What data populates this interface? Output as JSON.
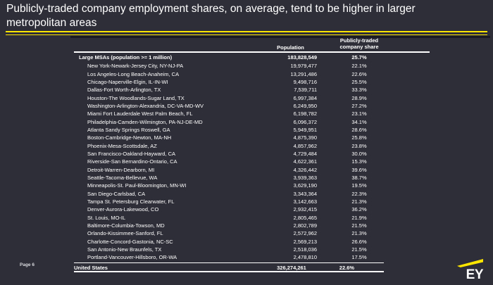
{
  "colors": {
    "bg": "#2e2e38",
    "accent": "#ffe600",
    "text": "#ffffff"
  },
  "slide": {
    "title": "Publicly-traded company employment shares, on average, tend to be higher in larger metropolitan areas",
    "page_label": "Page 6",
    "logo_text": "EY"
  },
  "table": {
    "headers": {
      "label": "",
      "population": "Population",
      "share": "Publicly-traded company share"
    },
    "rows": [
      {
        "type": "summary",
        "label": "Large MSAs (population >= 1 million)",
        "population": "183,828,549",
        "share": "25.7%"
      },
      {
        "type": "metro",
        "label": "New York-Newark-Jersey City, NY-NJ-PA",
        "population": "19,979,477",
        "share": "22.1%"
      },
      {
        "type": "metro",
        "label": "Los Angeles-Long Beach-Anaheim, CA",
        "population": "13,291,486",
        "share": "22.6%"
      },
      {
        "type": "metro",
        "label": "Chicago-Naperville-Elgin, IL-IN-WI",
        "population": "9,498,716",
        "share": "25.5%"
      },
      {
        "type": "metro",
        "label": "Dallas-Fort Worth-Arlington, TX",
        "population": "7,539,711",
        "share": "33.3%"
      },
      {
        "type": "metro",
        "label": "Houston-The Woodlands-Sugar Land, TX",
        "population": "6,997,384",
        "share": "28.9%"
      },
      {
        "type": "metro",
        "label": "Washington-Arlington-Alexandria, DC-VA-MD-WV",
        "population": "6,249,950",
        "share": "27.2%"
      },
      {
        "type": "metro",
        "label": "Miami Fort Lauderdale West Palm Beach, FL",
        "population": "6,198,782",
        "share": "23.1%"
      },
      {
        "type": "metro",
        "label": "Philadelphia-Camden-Wilmington, PA-NJ-DE-MD",
        "population": "6,096,372",
        "share": "34.1%"
      },
      {
        "type": "metro",
        "label": "Atlanta Sandy Springs Roswell, GA",
        "population": "5,949,951",
        "share": "28.6%"
      },
      {
        "type": "metro",
        "label": "Boston-Cambridge-Newton, MA-NH",
        "population": "4,875,390",
        "share": "25.8%"
      },
      {
        "type": "metro",
        "label": "Phoenix-Mesa-Scottsdale, AZ",
        "population": "4,857,962",
        "share": "23.8%"
      },
      {
        "type": "metro",
        "label": "San Francisco-Oakland-Hayward, CA",
        "population": "4,729,484",
        "share": "30.0%"
      },
      {
        "type": "metro",
        "label": "Riverside-San Bernardino-Ontario, CA",
        "population": "4,622,361",
        "share": "15.3%"
      },
      {
        "type": "metro",
        "label": "Detroit-Warren-Dearborn, MI",
        "population": "4,326,442",
        "share": "39.6%"
      },
      {
        "type": "metro",
        "label": "Seattle-Tacoma-Bellevue, WA",
        "population": "3,939,363",
        "share": "38.7%"
      },
      {
        "type": "metro",
        "label": "Minneapolis-St. Paul-Bloomington, MN-WI",
        "population": "3,629,190",
        "share": "19.5%"
      },
      {
        "type": "metro",
        "label": "San Diego-Carlsbad, CA",
        "population": "3,343,364",
        "share": "22.3%"
      },
      {
        "type": "metro",
        "label": "Tampa St. Petersburg Clearwater, FL",
        "population": "3,142,663",
        "share": "21.3%"
      },
      {
        "type": "metro",
        "label": "Denver-Aurora-Lakewood, CO",
        "population": "2,932,415",
        "share": "36.2%"
      },
      {
        "type": "metro",
        "label": "St. Louis, MO-IL",
        "population": "2,805,465",
        "share": "21.9%"
      },
      {
        "type": "metro",
        "label": "Baltimore-Columbia-Towson, MD",
        "population": "2,802,789",
        "share": "21.5%"
      },
      {
        "type": "metro",
        "label": "Orlando-Kissimmee-Sanford, FL",
        "population": "2,572,962",
        "share": "21.3%"
      },
      {
        "type": "metro",
        "label": "Charlotte-Concord-Gastonia, NC-SC",
        "population": "2,569,213",
        "share": "26.6%"
      },
      {
        "type": "metro",
        "label": "San Antonio-New Braunfels, TX",
        "population": "2,518,036",
        "share": "21.5%"
      },
      {
        "type": "metro",
        "label": "Portland-Vancouver-Hillsboro, OR-WA",
        "population": "2,478,810",
        "share": "17.5%"
      },
      {
        "type": "total",
        "label": "United States",
        "population": "326,274,261",
        "share": "22.6%"
      }
    ]
  }
}
